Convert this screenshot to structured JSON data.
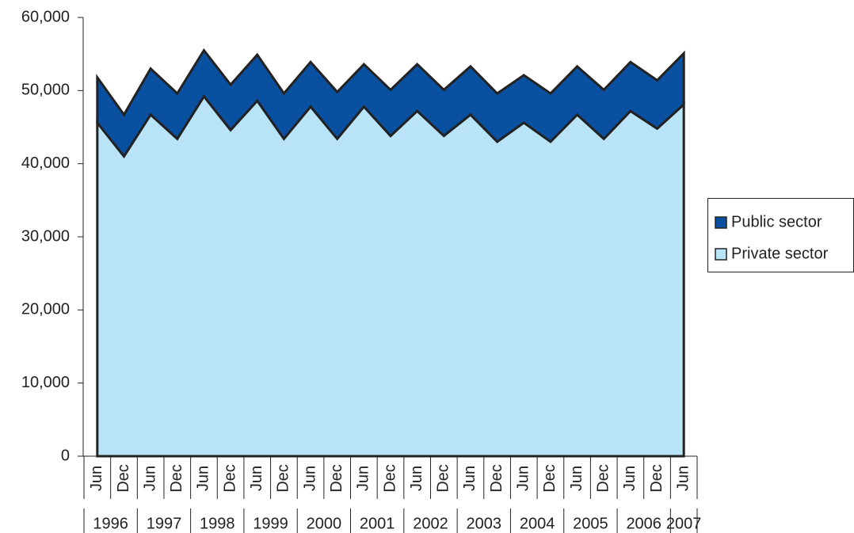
{
  "chart_data": {
    "type": "stacked-area",
    "categories": [
      "Jun",
      "Dec",
      "Jun",
      "Dec",
      "Jun",
      "Dec",
      "Jun",
      "Dec",
      "Jun",
      "Dec",
      "Jun",
      "Dec",
      "Jun",
      "Dec",
      "Jun",
      "Dec",
      "Jun",
      "Dec",
      "Jun",
      "Dec",
      "Jun",
      "Dec",
      "Jun"
    ],
    "years": [
      "1996",
      "1997",
      "1998",
      "1999",
      "2000",
      "2001",
      "2002",
      "2003",
      "2004",
      "2005",
      "2006",
      "2007"
    ],
    "series": [
      {
        "name": "Private sector",
        "color": "#b9e4f7",
        "values": [
          45600,
          41000,
          46700,
          43400,
          49200,
          44600,
          48600,
          43400,
          47800,
          43400,
          47800,
          43800,
          47200,
          43800,
          46700,
          43000,
          45600,
          43000,
          46700,
          43400,
          47200,
          44800,
          48100
        ]
      },
      {
        "name": "Public sector",
        "color": "#0a50a1",
        "values": [
          6200,
          5700,
          6300,
          6200,
          6300,
          6200,
          6300,
          6200,
          6100,
          6400,
          5800,
          6300,
          6400,
          6300,
          6600,
          6600,
          6500,
          6600,
          6600,
          6700,
          6700,
          6600,
          7000
        ]
      }
    ],
    "ylim": [
      0,
      60000
    ],
    "yticks": [
      0,
      {
        "value": 10000,
        "label": "10,000"
      },
      {
        "value": 20000,
        "label": "20,000"
      },
      {
        "value": 30000,
        "label": "30,000"
      },
      {
        "value": 40000,
        "label": "40,000"
      },
      {
        "value": 50000,
        "label": "50,000"
      },
      {
        "value": 60000,
        "label": "60,000"
      }
    ],
    "legend": "right"
  }
}
